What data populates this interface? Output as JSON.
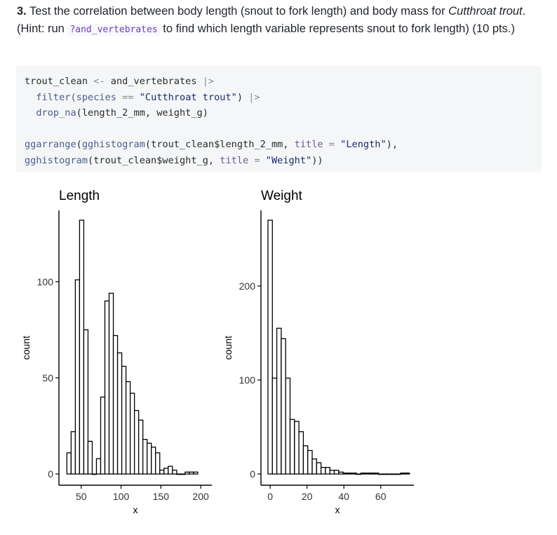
{
  "question": {
    "number": "3.",
    "text_a": " Test the correlation between body length (snout to fork length) and body mass for ",
    "species_italic": "Cutthroat trout",
    "text_b": ". (Hint: run ",
    "inline_code": "?and_vertebrates",
    "text_c": " to find which length variable represents snout to fork length) (10 pts.)"
  },
  "code": {
    "l1_var": "trout_clean",
    "l1_assign": " <- ",
    "l1_obj": "and_vertebrates",
    "l1_pipe": " |>",
    "l2_fn": "filter",
    "l2_open": "(species ",
    "l2_eq": "==",
    "l2_space": " ",
    "l2_str": "\"Cutthroat trout\"",
    "l2_close": ")",
    "l2_pipe": " |>",
    "l3_fn": "drop_na",
    "l3_args": "(length_2_mm, weight_g)",
    "l5_fn": "ggarrange",
    "l5_open": "(",
    "l5_fn2": "gghistogram",
    "l5_arg": "(trout_clean$length_2_mm, ",
    "l5_title": "title",
    "l5_eq": " = ",
    "l5_str": "\"Length\"",
    "l5_close": "),",
    "l6_fn": "gghistogram",
    "l6_arg": "(trout_clean$weight_g, ",
    "l6_title": "title",
    "l6_eq": " = ",
    "l6_str": "\"Weight\"",
    "l6_close": "))"
  },
  "chart_data": [
    {
      "type": "bar",
      "title": "Length",
      "xlabel": "x",
      "ylabel": "count",
      "xlim": [
        22,
        214
      ],
      "ylim": [
        0,
        132
      ],
      "xticks": [
        50,
        100,
        150,
        200
      ],
      "yticks": [
        0,
        50,
        100
      ],
      "bin_width": 5.3,
      "bin_start": 32,
      "values": [
        11,
        22,
        101,
        132,
        75,
        17,
        0,
        8,
        40,
        90,
        94,
        72,
        63,
        56,
        48,
        42,
        33,
        28,
        18,
        16,
        14,
        11,
        2,
        3,
        4,
        2,
        0,
        0,
        1,
        1,
        1
      ],
      "grid": false
    },
    {
      "type": "bar",
      "title": "Weight",
      "xlabel": "x",
      "ylabel": "count",
      "xlim": [
        -5,
        78
      ],
      "ylim": [
        0,
        270
      ],
      "xticks": [
        0,
        20,
        40,
        60
      ],
      "yticks": [
        0,
        100,
        200
      ],
      "bin_width": 2.4,
      "bin_start": -1.2,
      "values": [
        270,
        102,
        155,
        144,
        102,
        58,
        56,
        45,
        30,
        25,
        16,
        12,
        7,
        7,
        4,
        4,
        2,
        1,
        1,
        1,
        0,
        1,
        1,
        1,
        1,
        0,
        0,
        0,
        0,
        0,
        1,
        1
      ],
      "grid": false
    }
  ]
}
